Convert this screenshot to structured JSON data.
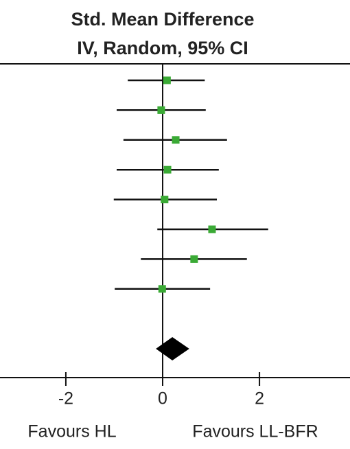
{
  "chart_data": {
    "type": "forest",
    "title": "Std. Mean Difference",
    "subtitle": "IV, Random, 95% CI",
    "estimates": [
      0.09,
      -0.03,
      0.27,
      0.1,
      0.04,
      1.02,
      0.65,
      -0.01
    ],
    "lower": [
      -0.72,
      -0.95,
      -0.81,
      -0.95,
      -1.01,
      -0.11,
      -0.45,
      -0.99
    ],
    "upper": [
      0.87,
      0.89,
      1.33,
      1.16,
      1.12,
      2.18,
      1.74,
      0.98
    ],
    "summary": {
      "value": 0.2,
      "lower": -0.14,
      "upper": 0.55
    },
    "color": "#3aaa35",
    "xlim": [
      -3.36,
      3.87
    ],
    "xticks": [
      -2,
      0,
      2
    ],
    "annotations": [
      "Favours HL",
      "Favours LL-BFR"
    ]
  }
}
